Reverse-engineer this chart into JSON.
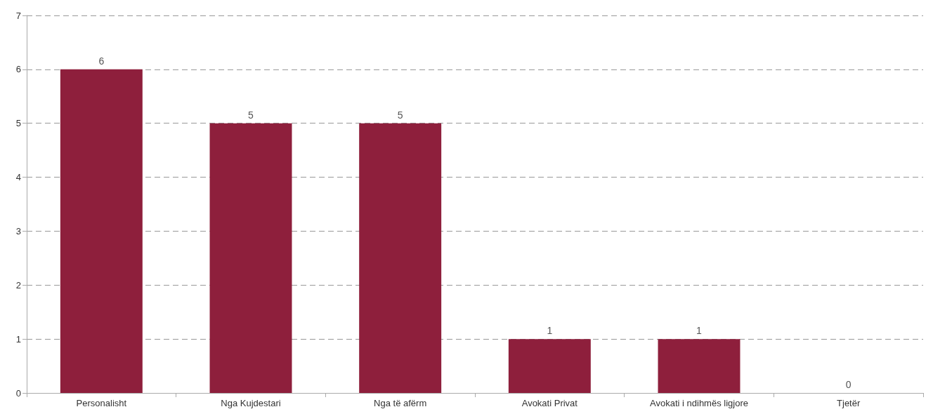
{
  "chart_data": {
    "type": "bar",
    "categories": [
      "Personalisht",
      "Nga Kujdestari",
      "Nga të afërm",
      "Avokati Privat",
      "Avokati i ndihmës ligjore",
      "Tjetër"
    ],
    "values": [
      6,
      5,
      5,
      1,
      1,
      0
    ],
    "color": "#8e1f3c",
    "ylim": [
      0,
      7
    ],
    "yticks": [
      0,
      1,
      2,
      3,
      4,
      5,
      6,
      7
    ],
    "grid": "y",
    "data_labels": true
  }
}
